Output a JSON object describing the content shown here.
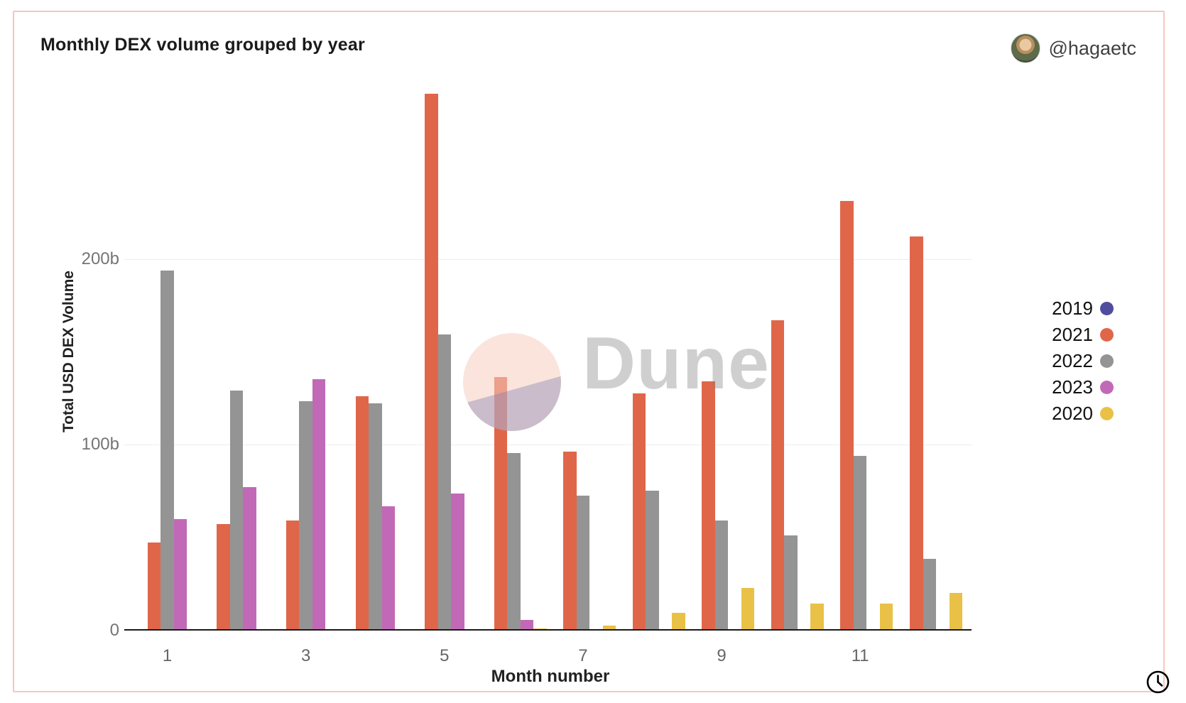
{
  "header": {
    "title": "Monthly DEX volume grouped by year",
    "author_handle": "@hagaetc"
  },
  "watermark": {
    "text": "Dune"
  },
  "icons": {
    "clock_icon": "clock",
    "avatar": "profile-photo"
  },
  "chart_data": {
    "type": "bar",
    "title": "Monthly DEX volume grouped by year",
    "xlabel": "Month number",
    "ylabel": "Total USD DEX Volume",
    "units": "billions USD",
    "categories": [
      1,
      2,
      3,
      4,
      5,
      6,
      7,
      8,
      9,
      10,
      11,
      12
    ],
    "x_tick_labels": [
      "1",
      "3",
      "5",
      "7",
      "9",
      "11"
    ],
    "y_ticks": [
      {
        "label": "0",
        "value": 0
      },
      {
        "label": "100b",
        "value": 100
      },
      {
        "label": "200b",
        "value": 200
      }
    ],
    "ylim": [
      0,
      290
    ],
    "grid": "horizontal",
    "legend_position": "right",
    "series": [
      {
        "name": "2019",
        "color": "#504d9e",
        "values": [
          0.5,
          0.5,
          0.5,
          0.5,
          0.5,
          0.5,
          0.5,
          0.5,
          0.5,
          0.5,
          0.5,
          0.5
        ]
      },
      {
        "name": "2021",
        "color": "#e0664a",
        "values": [
          47.3,
          57.4,
          59.4,
          126.2,
          289.0,
          136.4,
          96.2,
          127.7,
          134.4,
          167.3,
          231.4,
          212.1
        ]
      },
      {
        "name": "2022",
        "color": "#949494",
        "values": [
          194.0,
          129.3,
          123.7,
          122.4,
          159.5,
          95.5,
          72.5,
          75.2,
          59.2,
          51.1,
          94.2,
          38.8
        ]
      },
      {
        "name": "2023",
        "color": "#c169b7",
        "values": [
          59.9,
          77.2,
          135.5,
          66.9,
          73.7,
          5.6,
          0.3,
          0.3,
          0.3,
          0.3,
          0.3,
          0.3
        ]
      },
      {
        "name": "2020",
        "color": "#e9c147",
        "values": [
          0.4,
          0.5,
          0.6,
          0.7,
          0.7,
          1.0,
          2.7,
          9.7,
          22.8,
          14.5,
          14.6,
          20.2
        ]
      }
    ]
  }
}
